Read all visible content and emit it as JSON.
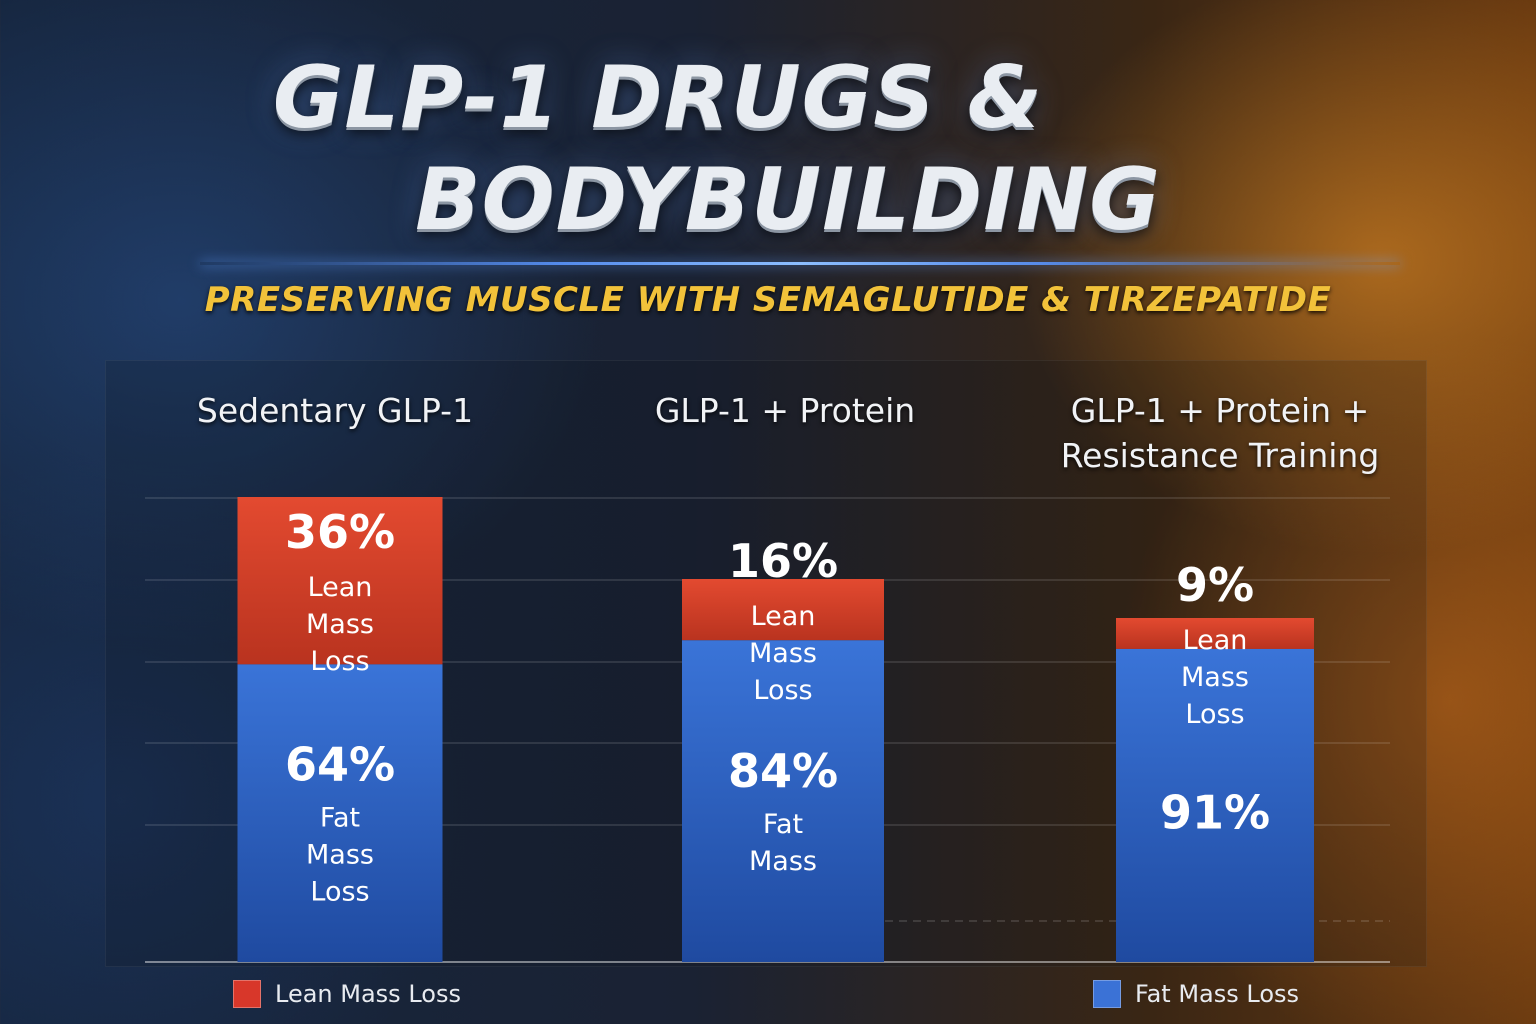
{
  "header": {
    "title_line1": "GLP-1 DRUGS &",
    "title_line2": "BODYBUILDING",
    "subtitle": "PRESERVING MUSCLE WITH SEMAGLUTIDE & TIRZEPATIDE"
  },
  "colors": {
    "lean": "#c9402a",
    "fat": "#2f63c4"
  },
  "chart_data": {
    "type": "bar",
    "stacked": true,
    "categories": [
      "Sedentary GLP-1",
      "GLP-1 + Protein",
      "GLP-1 + Protein + Resistance Training"
    ],
    "series": [
      {
        "name": "Lean Mass Loss",
        "values": [
          36,
          16,
          9
        ],
        "unit": "%"
      },
      {
        "name": "Fat Mass Loss",
        "values": [
          64,
          84,
          91
        ],
        "unit": "%"
      }
    ],
    "bar_labels": {
      "lean": [
        "Lean\nMass\nLoss",
        "Lean\nMass\nLoss",
        "Lean\nMass\nLoss"
      ],
      "fat": [
        "Fat\nMass\nLoss",
        "Fat\nMass",
        ""
      ]
    },
    "legend": [
      "Lean Mass Loss",
      "Fat Mass Loss"
    ],
    "legend_position": "bottom"
  }
}
